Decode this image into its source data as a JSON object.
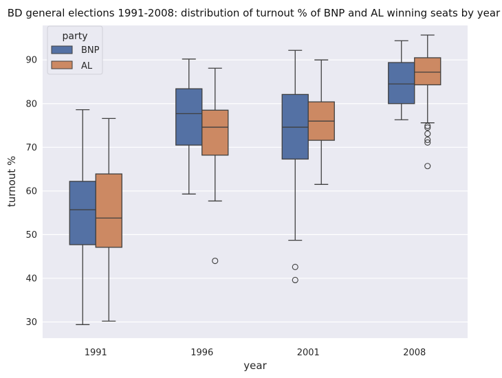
{
  "chart_data": {
    "type": "boxplot",
    "title": "BD general elections 1991-2008: distribution of turnout % of BNP and AL winning seats by year",
    "xlabel": "year",
    "ylabel": "turnout %",
    "categories": [
      "1991",
      "1996",
      "2001",
      "2008"
    ],
    "yticks": [
      30,
      40,
      50,
      60,
      70,
      80,
      90
    ],
    "ylim": [
      26.3,
      97.9
    ],
    "grid": true,
    "legend": {
      "title": "party",
      "placement": "top-left"
    },
    "series": [
      {
        "name": "BNP",
        "color": "#5471a4",
        "boxes": [
          {
            "whislo": 29.4,
            "q1": 47.7,
            "med": 55.7,
            "q3": 62.2,
            "whishi": 78.6,
            "fliers": []
          },
          {
            "whislo": 59.3,
            "q1": 70.5,
            "med": 77.7,
            "q3": 83.4,
            "whishi": 90.2,
            "fliers": []
          },
          {
            "whislo": 48.7,
            "q1": 67.3,
            "med": 74.6,
            "q3": 82.1,
            "whishi": 92.2,
            "fliers": [
              42.6,
              39.6
            ]
          },
          {
            "whislo": 76.3,
            "q1": 80.0,
            "med": 84.5,
            "q3": 89.4,
            "whishi": 94.4,
            "fliers": []
          }
        ]
      },
      {
        "name": "AL",
        "color": "#cc8963",
        "boxes": [
          {
            "whislo": 30.2,
            "q1": 47.1,
            "med": 53.8,
            "q3": 63.9,
            "whishi": 76.6,
            "fliers": []
          },
          {
            "whislo": 57.7,
            "q1": 68.2,
            "med": 74.6,
            "q3": 78.5,
            "whishi": 88.1,
            "fliers": [
              44.0
            ]
          },
          {
            "whislo": 61.5,
            "q1": 71.6,
            "med": 76.0,
            "q3": 80.4,
            "whishi": 90.0,
            "fliers": []
          },
          {
            "whislo": 75.6,
            "q1": 84.3,
            "med": 87.2,
            "q3": 90.5,
            "whishi": 95.7,
            "fliers": [
              74.9,
              74.5,
              73.1,
              71.7,
              71.1,
              65.7
            ]
          }
        ]
      }
    ]
  }
}
